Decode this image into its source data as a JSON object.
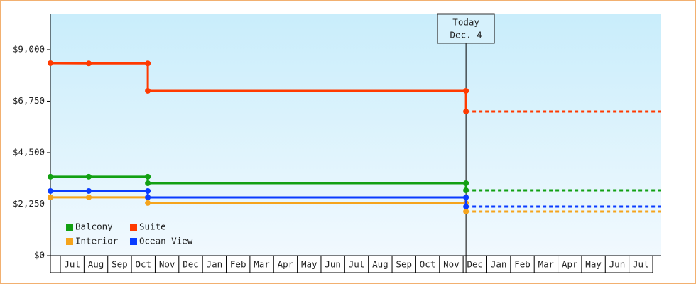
{
  "chart_data": {
    "type": "step-line",
    "x": [
      -0.42,
      1.2,
      3.69,
      3.69,
      17.12,
      17.12
    ],
    "xlim": [
      -0.42,
      25.36
    ],
    "xticks": [
      {
        "value": 0.5,
        "label": "Jul"
      },
      {
        "value": 1.5,
        "label": "Aug"
      },
      {
        "value": 2.5,
        "label": "Sep"
      },
      {
        "value": 3.5,
        "label": "Oct"
      },
      {
        "value": 4.5,
        "label": "Nov"
      },
      {
        "value": 5.5,
        "label": "Dec"
      },
      {
        "value": 6.5,
        "label": "Jan"
      },
      {
        "value": 7.5,
        "label": "Feb"
      },
      {
        "value": 8.5,
        "label": "Mar"
      },
      {
        "value": 9.5,
        "label": "Apr"
      },
      {
        "value": 10.5,
        "label": "May"
      },
      {
        "value": 11.5,
        "label": "Jun"
      },
      {
        "value": 12.5,
        "label": "Jul"
      },
      {
        "value": 13.5,
        "label": "Aug"
      },
      {
        "value": 14.5,
        "label": "Sep"
      },
      {
        "value": 15.5,
        "label": "Oct"
      },
      {
        "value": 16.5,
        "label": "Nov"
      },
      {
        "value": 17.5,
        "label": "Dec"
      },
      {
        "value": 18.5,
        "label": "Jan"
      },
      {
        "value": 19.5,
        "label": "Feb"
      },
      {
        "value": 20.5,
        "label": "Mar"
      },
      {
        "value": 21.5,
        "label": "Apr"
      },
      {
        "value": 22.5,
        "label": "May"
      },
      {
        "value": 23.5,
        "label": "Jun"
      },
      {
        "value": 24.5,
        "label": "Jul"
      }
    ],
    "ylim": [
      0,
      10550
    ],
    "yticks": [
      {
        "value": 0,
        "label": "$0"
      },
      {
        "value": 2250,
        "label": "$2,250"
      },
      {
        "value": 4500,
        "label": "$4,500"
      },
      {
        "value": 6750,
        "label": "$6,750"
      },
      {
        "value": 9000,
        "label": "$9,000"
      }
    ],
    "today": {
      "x": 17.12,
      "label": [
        "Today",
        "Dec. 4"
      ]
    },
    "legend": "lower-left",
    "series": [
      {
        "name": "Balcony",
        "color": "#12a012",
        "values": [
          3450,
          3450,
          3450,
          3165,
          3165,
          2855
        ]
      },
      {
        "name": "Suite",
        "color": "#ff3a00",
        "values": [
          8410,
          8400,
          8400,
          7200,
          7200,
          6300
        ]
      },
      {
        "name": "Interior",
        "color": "#f5a41c",
        "values": [
          2550,
          2550,
          2550,
          2300,
          2300,
          1925
        ]
      },
      {
        "name": "Ocean View",
        "color": "#0a3cff",
        "values": [
          2825,
          2825,
          2825,
          2545,
          2545,
          2140
        ]
      }
    ]
  }
}
